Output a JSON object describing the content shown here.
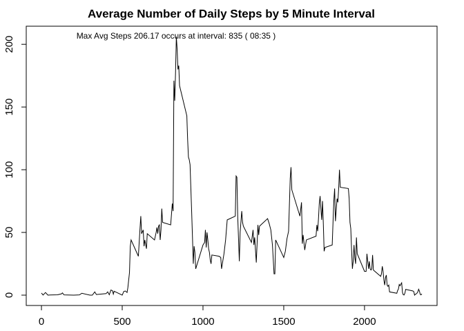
{
  "chart_data": {
    "type": "line",
    "title": "Average Number of Daily Steps by 5 Minute Interval",
    "annotation": "Max Avg Steps  206.17  occurs at interval:  835  ( 08:35 )",
    "color": "#000000",
    "xlim": [
      -94.2,
      2449.2
    ],
    "ylim": [
      -8.25,
      214.42
    ],
    "xticks": [
      0,
      500,
      1000,
      1500,
      2000
    ],
    "yticks": [
      0,
      50,
      100,
      150,
      200
    ],
    "x": [
      0,
      10,
      25,
      40,
      55,
      100,
      125,
      130,
      140,
      200,
      235,
      250,
      300,
      315,
      330,
      340,
      400,
      410,
      420,
      430,
      440,
      445,
      450,
      500,
      510,
      520,
      530,
      535,
      545,
      550,
      555,
      600,
      610,
      615,
      620,
      630,
      635,
      640,
      650,
      655,
      700,
      710,
      715,
      720,
      725,
      730,
      735,
      740,
      745,
      750,
      800,
      810,
      815,
      820,
      825,
      830,
      835,
      840,
      845,
      850,
      855,
      900,
      905,
      910,
      915,
      920,
      930,
      935,
      940,
      945,
      950,
      955,
      1000,
      1010,
      1015,
      1020,
      1025,
      1030,
      1035,
      1040,
      1045,
      1050,
      1055,
      1100,
      1110,
      1115,
      1120,
      1130,
      1140,
      1150,
      1200,
      1205,
      1210,
      1215,
      1225,
      1230,
      1240,
      1245,
      1250,
      1300,
      1310,
      1315,
      1320,
      1330,
      1340,
      1345,
      1350,
      1400,
      1410,
      1420,
      1430,
      1440,
      1445,
      1450,
      1500,
      1510,
      1520,
      1530,
      1540,
      1545,
      1550,
      1600,
      1610,
      1615,
      1620,
      1630,
      1640,
      1700,
      1705,
      1710,
      1715,
      1720,
      1725,
      1730,
      1735,
      1740,
      1745,
      1750,
      1755,
      1800,
      1805,
      1810,
      1815,
      1820,
      1825,
      1830,
      1835,
      1840,
      1845,
      1850,
      1900,
      1905,
      1910,
      1915,
      1920,
      1925,
      1930,
      1935,
      1940,
      1945,
      1950,
      1955,
      2000,
      2010,
      2015,
      2020,
      2025,
      2030,
      2035,
      2040,
      2045,
      2050,
      2055,
      2100,
      2105,
      2110,
      2115,
      2120,
      2125,
      2130,
      2135,
      2140,
      2145,
      2150,
      2155,
      2200,
      2205,
      2210,
      2215,
      2220,
      2225,
      2230,
      2235,
      2240,
      2245,
      2250,
      2255,
      2300,
      2305,
      2310,
      2315,
      2320,
      2325,
      2330,
      2335,
      2340,
      2345,
      2350,
      2355
    ],
    "values": [
      1.7,
      0.1,
      2.1,
      0,
      0.1,
      0.3,
      1.1,
      1.8,
      0.2,
      0,
      0.2,
      1.5,
      0,
      0,
      2.6,
      0.5,
      1.2,
      2.6,
      0.3,
      4.1,
      3.5,
      0.8,
      3.1,
      0,
      3,
      3.3,
      2.1,
      6,
      18,
      39,
      44,
      31,
      53,
      63,
      49,
      52,
      39,
      44,
      37,
      49,
      44,
      50,
      54,
      49,
      55,
      56,
      44,
      52,
      69,
      58,
      56,
      73,
      67,
      171,
      155,
      177,
      206.17,
      196,
      180,
      183,
      167,
      143,
      124,
      110,
      108,
      104,
      66,
      46,
      25,
      39,
      34,
      21,
      40,
      42,
      52,
      38,
      50,
      44,
      37,
      34,
      28,
      25,
      32,
      31,
      30,
      21,
      25,
      33,
      44,
      60,
      63,
      95,
      94,
      63,
      27,
      50,
      67,
      58,
      55,
      42,
      52,
      40,
      46,
      26,
      56,
      48,
      55,
      61,
      57,
      52,
      40,
      17,
      17,
      44,
      30,
      35,
      45,
      51,
      93,
      102,
      84,
      63,
      74,
      41,
      48,
      36,
      44,
      47,
      56,
      51,
      61,
      73,
      79,
      69,
      60,
      75,
      57,
      35,
      38,
      40,
      58,
      75,
      85,
      59,
      68,
      77,
      74,
      85,
      100,
      86,
      85,
      77,
      58,
      53,
      36,
      21,
      27,
      40,
      30,
      25,
      46,
      33,
      19,
      19,
      33,
      27,
      21,
      27,
      21,
      20,
      21,
      32,
      20,
      15,
      17,
      23,
      19,
      12,
      8,
      14,
      16,
      8,
      7,
      8,
      2.6,
      1.5,
      3.7,
      4.8,
      8.5,
      7.5,
      8.7,
      9.8,
      2.2,
      0.3,
      0.1,
      1.6,
      4.6,
      3.3,
      2.8,
      0,
      0.8,
      1,
      1.6,
      2.6,
      4.7,
      3.3,
      0.6,
      0.2,
      1.1
    ]
  }
}
